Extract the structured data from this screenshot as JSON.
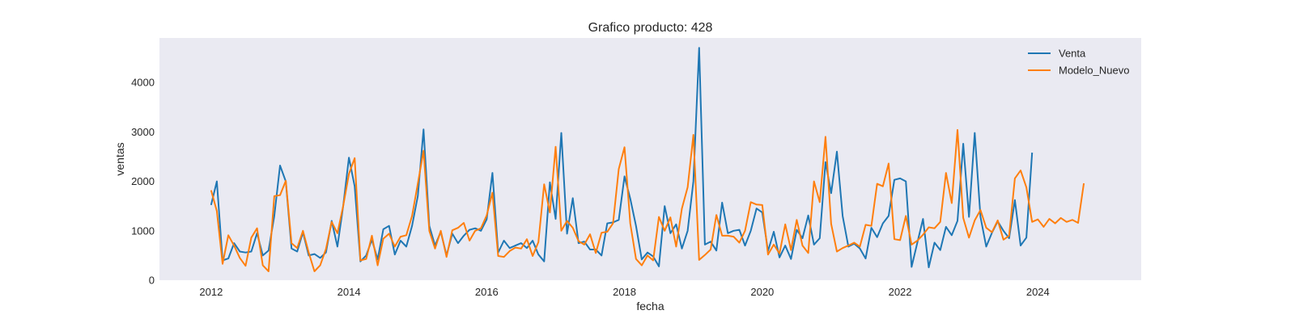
{
  "chart_data": {
    "type": "line",
    "title": "Grafico producto: 428",
    "xlabel": "fecha",
    "ylabel": "ventas",
    "xlim": [
      2011.25,
      2025.5
    ],
    "ylim": [
      0,
      4900
    ],
    "x_ticks": [
      2012,
      2014,
      2016,
      2018,
      2020,
      2022,
      2024
    ],
    "y_ticks": [
      0,
      1000,
      2000,
      3000,
      4000
    ],
    "grid": false,
    "background": "#eaeaf2",
    "legend_position": "top-right",
    "x_start": "2012-01",
    "x_step": "monthly",
    "series": [
      {
        "name": "Venta",
        "color": "#1f77b4",
        "values": [
          1520,
          2000,
          400,
          440,
          750,
          580,
          560,
          580,
          950,
          500,
          600,
          1300,
          2320,
          2000,
          640,
          580,
          970,
          500,
          530,
          450,
          560,
          1200,
          680,
          1500,
          2480,
          1900,
          380,
          500,
          820,
          420,
          1030,
          1100,
          520,
          800,
          680,
          1100,
          1700,
          3050,
          1100,
          700,
          980,
          500,
          940,
          750,
          900,
          1020,
          1050,
          1000,
          1230,
          2170,
          560,
          800,
          650,
          700,
          750,
          650,
          800,
          520,
          380,
          1980,
          1240,
          2980,
          940,
          1660,
          750,
          780,
          620,
          620,
          500,
          1150,
          1170,
          1220,
          2100,
          1650,
          1100,
          420,
          560,
          480,
          280,
          1500,
          950,
          1130,
          640,
          1000,
          2000,
          4700,
          720,
          780,
          600,
          1570,
          950,
          1000,
          1020,
          700,
          1000,
          1450,
          1370,
          590,
          980,
          460,
          700,
          430,
          1020,
          850,
          1310,
          720,
          850,
          2390,
          1760,
          2600,
          1300,
          680,
          740,
          640,
          440,
          1060,
          870,
          1150,
          1300,
          2030,
          2060,
          2000,
          270,
          760,
          1240,
          260,
          760,
          610,
          1080,
          910,
          1200,
          2760,
          1280,
          2980,
          1280,
          680,
          960,
          1190,
          1000,
          850,
          1620,
          700,
          860,
          2580
        ],
        "n_points": 144
      },
      {
        "name": "Modelo_Nuevo",
        "color": "#ff7f0e",
        "values": [
          1820,
          1400,
          330,
          910,
          700,
          450,
          290,
          860,
          1050,
          300,
          180,
          1700,
          1720,
          2010,
          750,
          650,
          1000,
          560,
          180,
          300,
          630,
          1180,
          950,
          1500,
          2150,
          2470,
          400,
          430,
          900,
          300,
          840,
          940,
          680,
          880,
          910,
          1300,
          1950,
          2620,
          1000,
          640,
          1000,
          470,
          1010,
          1060,
          1160,
          800,
          1000,
          1050,
          1310,
          1770,
          490,
          470,
          590,
          660,
          640,
          830,
          490,
          770,
          1940,
          1370,
          2700,
          1000,
          1200,
          1060,
          790,
          720,
          930,
          550,
          960,
          980,
          1150,
          2250,
          2690,
          1150,
          430,
          300,
          500,
          400,
          1280,
          1000,
          1270,
          680,
          1450,
          1880,
          2940,
          410,
          510,
          620,
          1320,
          900,
          900,
          880,
          760,
          1000,
          1580,
          1530,
          1520,
          520,
          720,
          540,
          1130,
          610,
          1220,
          700,
          550,
          2000,
          1580,
          2900,
          1140,
          580,
          650,
          700,
          760,
          680,
          1120,
          1100,
          1950,
          1900,
          2360,
          830,
          810,
          1300,
          720,
          800,
          920,
          1070,
          1050,
          1180,
          2170,
          1560,
          3040,
          1260,
          860,
          1210,
          1420,
          1060,
          970,
          1210,
          820,
          900,
          2060,
          2220,
          1880,
          1180,
          1230,
          1080,
          1240,
          1150,
          1260,
          1180,
          1220,
          1160,
          1960
        ],
        "n_points": 156
      }
    ]
  }
}
